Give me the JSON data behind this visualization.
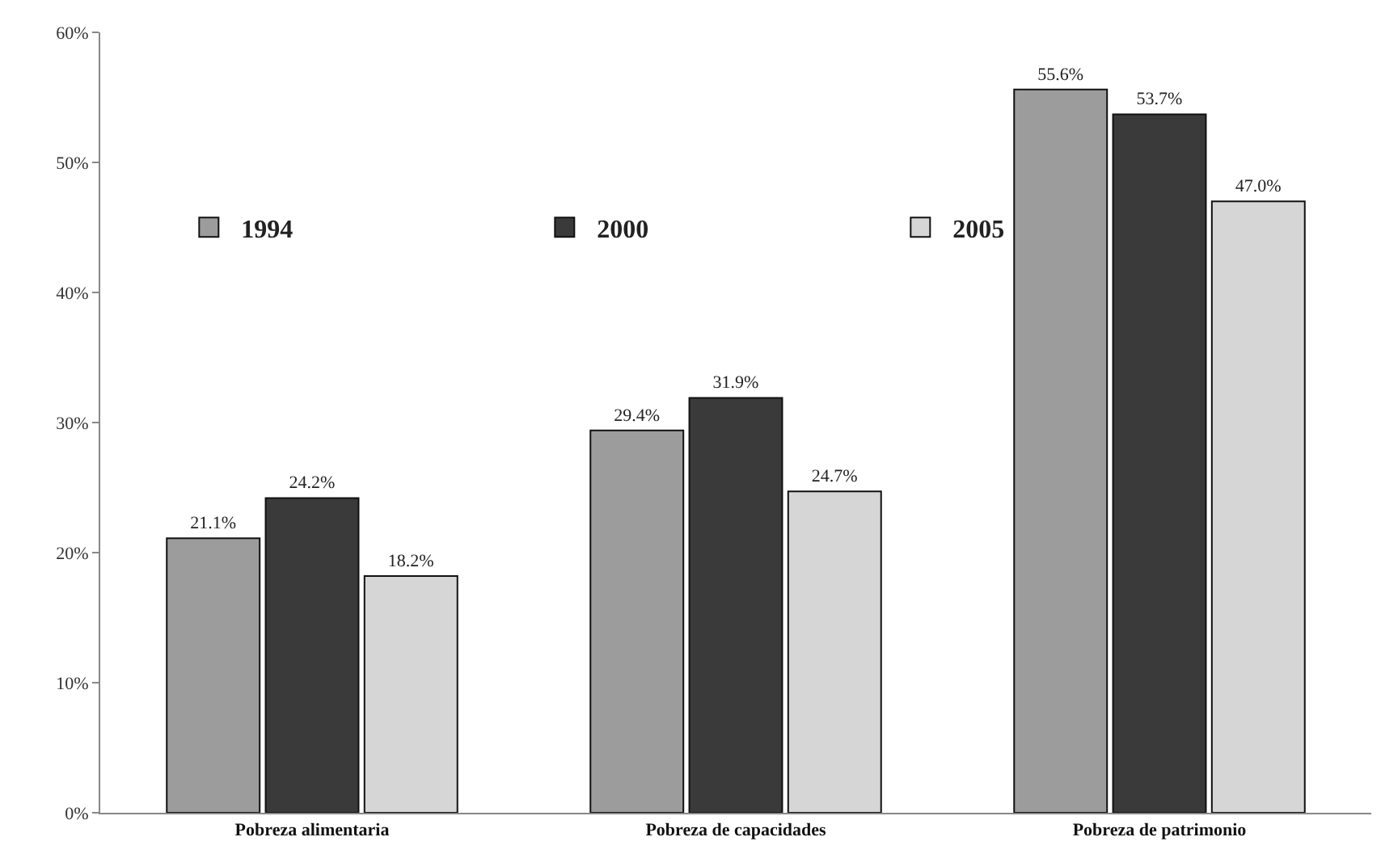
{
  "chart_data": {
    "type": "bar",
    "categories": [
      "Pobreza alimentaria",
      "Pobreza de capacidades",
      "Pobreza de patrimonio"
    ],
    "series": [
      {
        "name": "1994",
        "color": "#9c9c9c",
        "values": [
          21.1,
          29.4,
          55.6
        ],
        "value_labels": [
          "21.1%",
          "29.4%",
          "55.6%"
        ]
      },
      {
        "name": "2000",
        "color": "#3a3a3a",
        "values": [
          24.2,
          31.9,
          53.7
        ],
        "value_labels": [
          "24.2%",
          "31.9%",
          "53.7%"
        ]
      },
      {
        "name": "2005",
        "color": "#d6d6d6",
        "values": [
          18.2,
          24.7,
          47.0
        ],
        "value_labels": [
          "18.2%",
          "24.7%",
          "47.0%"
        ]
      }
    ],
    "ylim": [
      0,
      60
    ],
    "yticks": [
      {
        "value": 0,
        "label": "0%"
      },
      {
        "value": 10,
        "label": "10%"
      },
      {
        "value": 20,
        "label": "20%"
      },
      {
        "value": 30,
        "label": "30%"
      },
      {
        "value": 40,
        "label": "40%"
      },
      {
        "value": 50,
        "label": "50%"
      },
      {
        "value": 60,
        "label": "60%"
      }
    ],
    "grid": false,
    "legend": "top left"
  }
}
